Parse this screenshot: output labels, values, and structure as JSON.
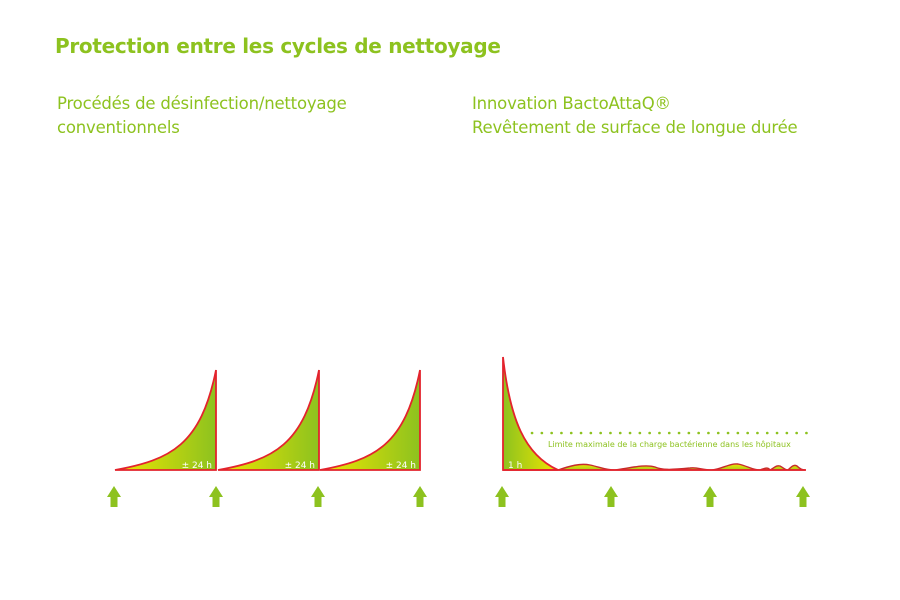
{
  "title": "Protection entre les cycles de nettoyage",
  "left": {
    "line1": "Procédés de désinfection/nettoyage",
    "line2": "conventionnels",
    "cycle_label": "± 24 h"
  },
  "right": {
    "line1": "Innovation BactoAttaQ®",
    "line2": "Revêtement de surface de longue durée",
    "cycle_label": "1 h",
    "limit_label": "Limite maximale de la charge bactérienne dans les hôpitaux"
  },
  "colors": {
    "green": "#8dc21f",
    "yellow": "#f0e600",
    "red": "#e3232d"
  }
}
